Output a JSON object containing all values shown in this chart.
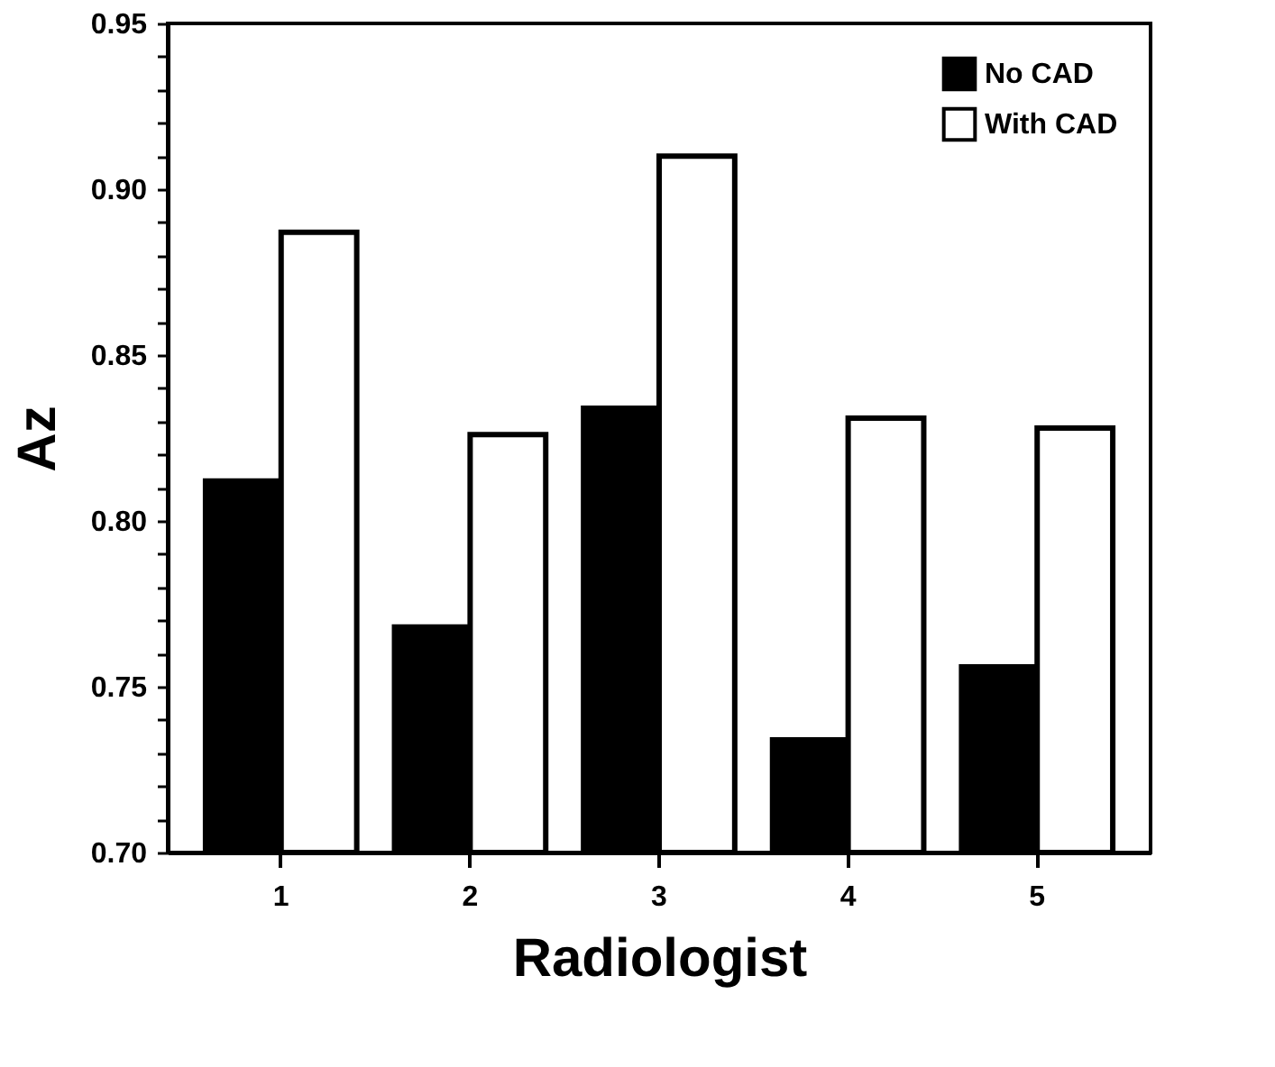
{
  "chart_data": {
    "type": "bar",
    "xlabel": "Radiologist",
    "ylabel": "Az",
    "categories": [
      "1",
      "2",
      "3",
      "4",
      "5"
    ],
    "series": [
      {
        "name": "No CAD",
        "color": "#000000",
        "values": [
          0.812,
          0.768,
          0.834,
          0.734,
          0.756
        ]
      },
      {
        "name": "With CAD",
        "color": "#ffffff",
        "values": [
          0.887,
          0.826,
          0.91,
          0.831,
          0.828
        ]
      }
    ],
    "ylim": [
      0.7,
      0.95
    ],
    "yticks": [
      {
        "value": 0.7,
        "label": "0.70"
      },
      {
        "value": 0.71,
        "label": null
      },
      {
        "value": 0.72,
        "label": null
      },
      {
        "value": 0.73,
        "label": null
      },
      {
        "value": 0.74,
        "label": null
      },
      0.75,
      {
        "value": 0.76,
        "label": null
      },
      {
        "value": 0.77,
        "label": null
      },
      {
        "value": 0.78,
        "label": null
      },
      {
        "value": 0.79,
        "label": null
      },
      {
        "value": 0.8,
        "label": "0.80"
      },
      {
        "value": 0.81,
        "label": null
      },
      {
        "value": 0.82,
        "label": null
      },
      {
        "value": 0.83,
        "label": null
      },
      {
        "value": 0.84,
        "label": null
      },
      0.85,
      {
        "value": 0.86,
        "label": null
      },
      {
        "value": 0.87,
        "label": null
      },
      {
        "value": 0.88,
        "label": null
      },
      {
        "value": 0.89,
        "label": null
      },
      {
        "value": 0.9,
        "label": "0.90"
      },
      {
        "value": 0.91,
        "label": null
      },
      {
        "value": 0.92,
        "label": null
      },
      {
        "value": 0.93,
        "label": null
      },
      {
        "value": 0.94,
        "label": null
      },
      0.95
    ],
    "grid": false,
    "legend": "top right"
  }
}
